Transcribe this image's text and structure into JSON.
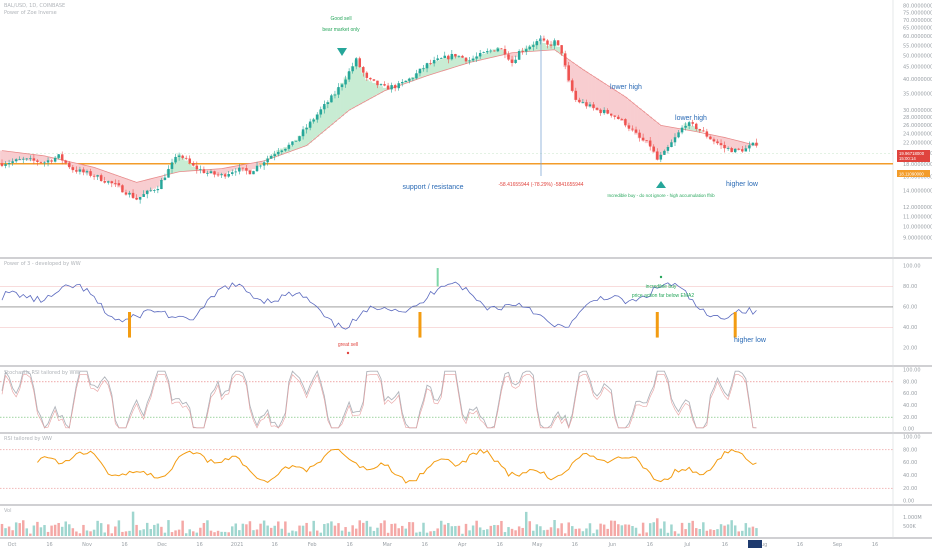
{
  "chart_data": {
    "type": "candlestick",
    "title": "BAL/USD, 1D, COINBASE",
    "subtitle": "Power of Zoe Inverse",
    "price_scale": {
      "log": true,
      "ylim": [
        9.0,
        80.0
      ],
      "tick_labels": [
        "80.00000000",
        "75.00000000",
        "70.00000000",
        "65.00000000",
        "60.00000000",
        "55.00000000",
        "50.00000000",
        "45.00000000",
        "40.00000000",
        "35.00000000",
        "30.00000000",
        "28.00000000",
        "26.00000000",
        "24.00000000",
        "22.00000000",
        "20.00000000",
        "18.00000000",
        "16.00000000",
        "14.00000000",
        "12.00000000",
        "11.00000000",
        "10.00000000",
        "9.00000000"
      ]
    },
    "current_price": {
      "value": "19.96718000",
      "countdown": "15:00:14"
    },
    "support_price": "18.11090000",
    "price_path": [
      [
        0,
        18.2
      ],
      [
        6,
        18.8
      ],
      [
        12,
        18.4
      ],
      [
        16,
        19.4
      ],
      [
        20,
        17.2
      ],
      [
        26,
        16.2
      ],
      [
        32,
        14.8
      ],
      [
        36,
        13.6
      ],
      [
        38,
        13.0
      ],
      [
        44,
        14.6
      ],
      [
        48,
        18.0
      ],
      [
        50,
        19.8
      ],
      [
        54,
        17.6
      ],
      [
        58,
        16.6
      ],
      [
        62,
        16.2
      ],
      [
        66,
        17.2
      ],
      [
        70,
        16.8
      ],
      [
        74,
        18.6
      ],
      [
        78,
        20.6
      ],
      [
        82,
        21.8
      ],
      [
        86,
        25.5
      ],
      [
        90,
        30.0
      ],
      [
        94,
        35.0
      ],
      [
        98,
        43.0
      ],
      [
        100,
        48.0
      ],
      [
        103,
        40.0
      ],
      [
        108,
        37.0
      ],
      [
        112,
        37.8
      ],
      [
        116,
        41.0
      ],
      [
        120,
        46.0
      ],
      [
        124,
        48.5
      ],
      [
        128,
        50.5
      ],
      [
        132,
        48.0
      ],
      [
        136,
        51.0
      ],
      [
        140,
        54.0
      ],
      [
        142,
        52.0
      ],
      [
        144,
        47.0
      ],
      [
        146,
        52.0
      ],
      [
        150,
        56.0
      ],
      [
        152,
        58.0
      ],
      [
        154,
        55.0
      ],
      [
        156,
        57.0
      ],
      [
        158,
        52.0
      ],
      [
        160,
        39.0
      ],
      [
        162,
        33.0
      ],
      [
        164,
        32.0
      ],
      [
        168,
        30.0
      ],
      [
        172,
        29.0
      ],
      [
        176,
        26.5
      ],
      [
        180,
        23.0
      ],
      [
        183,
        21.5
      ],
      [
        185,
        18.8
      ],
      [
        187,
        20.0
      ],
      [
        190,
        23.0
      ],
      [
        193,
        26.5
      ],
      [
        196,
        25.5
      ],
      [
        200,
        23.0
      ],
      [
        204,
        21.0
      ],
      [
        207,
        20.5
      ],
      [
        210,
        20.8
      ],
      [
        213,
        22.0
      ]
    ],
    "ema": [
      [
        0,
        20.5
      ],
      [
        12,
        19.5
      ],
      [
        26,
        17.5
      ],
      [
        38,
        15.2
      ],
      [
        50,
        16.8
      ],
      [
        62,
        17.3
      ],
      [
        74,
        18.6
      ],
      [
        86,
        21.5
      ],
      [
        98,
        30.0
      ],
      [
        108,
        36.0
      ],
      [
        120,
        41.5
      ],
      [
        132,
        47.0
      ],
      [
        144,
        51.5
      ],
      [
        156,
        53.0
      ],
      [
        164,
        44.0
      ],
      [
        176,
        34.0
      ],
      [
        186,
        26.0
      ],
      [
        196,
        24.5
      ],
      [
        204,
        23.2
      ],
      [
        213,
        21.5
      ]
    ],
    "annotations": [
      {
        "text": "Good sell",
        "color": "#26a65b"
      },
      {
        "text": "bear market only",
        "color": "#26a65b"
      },
      {
        "text": "lower high",
        "color": "#2a6ab5"
      },
      {
        "text": "lower high",
        "color": "#2a6ab5"
      },
      {
        "text": "higher low",
        "color": "#2a6ab5"
      },
      {
        "text": "support  /  resistance",
        "color": "#2a6ab5"
      },
      {
        "text": "-58.41655944 (-78.29%) -5841655944",
        "color": "#e0443e"
      },
      {
        "text": "Incredible buy - do not ignore - high accumulation ffrib",
        "color": "#26a65b"
      }
    ],
    "panes": [
      {
        "name": "Power of 3 - developed by WW",
        "tick_labels": [
          "100.00",
          "80.00",
          "60.00",
          "40.00",
          "20.00"
        ],
        "annotations": [
          {
            "text": "great sell",
            "color": "#e0443e"
          },
          {
            "text": "incredible buy",
            "color": "#26a65b"
          },
          {
            "text": "price action far below EMA2",
            "color": "#26a65b"
          },
          {
            "text": "higher low",
            "color": "#2a6ab5"
          }
        ]
      },
      {
        "name": "Stochastic RSI tailored by WW",
        "tick_labels": [
          "100.00",
          "80.00",
          "60.00",
          "40.00",
          "20.00",
          "0.00"
        ]
      },
      {
        "name": "RSI tailored by WW",
        "tick_labels": [
          "100.00",
          "80.00",
          "60.00",
          "40.00",
          "20.00",
          "0.00"
        ]
      },
      {
        "name": "Vol",
        "tick_labels": [
          "1.000M",
          "500K"
        ]
      }
    ],
    "x_tick_labels": [
      "Oct",
      "16",
      "Nov",
      "16",
      "Dec",
      "16",
      "2021",
      "16",
      "Feb",
      "16",
      "Mar",
      "16",
      "Apr",
      "16",
      "May",
      "16",
      "Jun",
      "16",
      "Jul",
      "16",
      "Aug",
      "16",
      "Sep",
      "16"
    ],
    "colors": {
      "up": "#26a69a",
      "down": "#ef5350",
      "ema": "#e88b8b",
      "support": "#f39c2a",
      "rsi": "#f39c12",
      "power_line": "#5b6abf"
    }
  }
}
